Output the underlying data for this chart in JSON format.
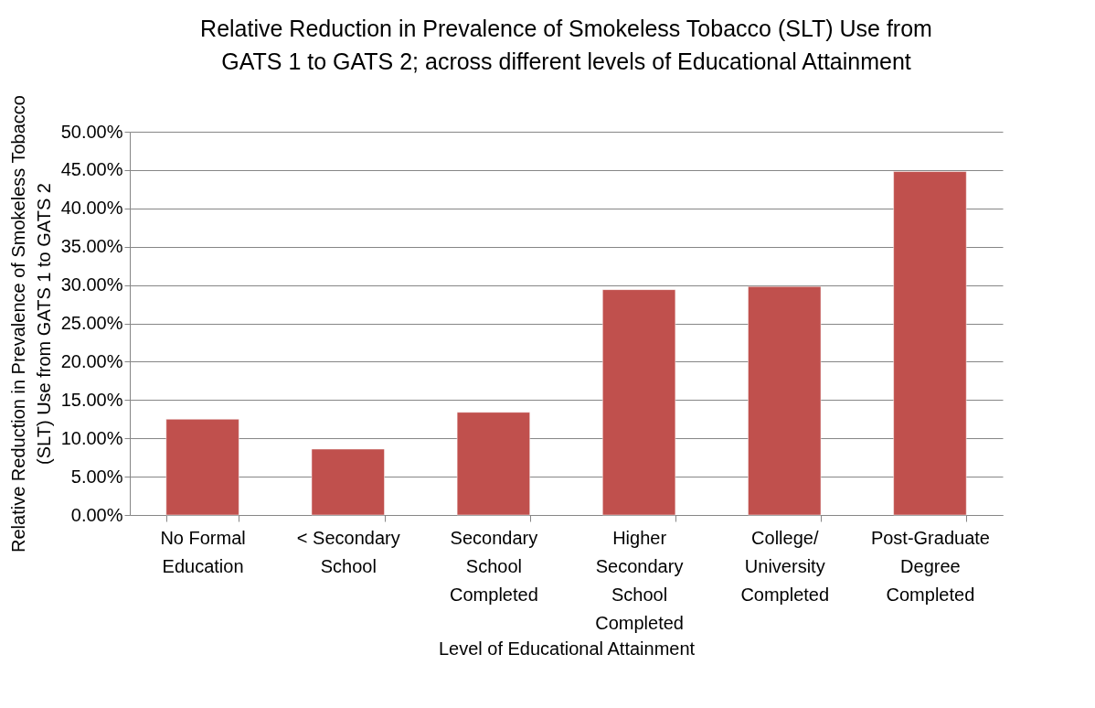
{
  "chart_data": {
    "type": "bar",
    "title": "Relative Reduction in Prevalence of Smokeless Tobacco (SLT) Use from GATS 1 to GATS 2; across different levels of Educational Attainment",
    "xlabel": "Level of Educational Attainment",
    "ylabel": "Relative Reduction in Prevalence of Smokeless Tobacco (SLT) Use from GATS 1 to GATS 2",
    "categories": [
      "No Formal Education",
      "< Secondary School",
      "Secondary School Completed",
      "Higher Secondary School Completed",
      "College/ University Completed",
      "Post-Graduate Degree Completed"
    ],
    "values": [
      12.5,
      8.6,
      13.4,
      29.4,
      29.8,
      44.8
    ],
    "color": "#c0504d",
    "ylim": [
      0,
      50
    ],
    "yticks": [
      {
        "value": 0,
        "label": "0.00%"
      },
      {
        "value": 5,
        "label": "5.00%"
      },
      {
        "value": 10,
        "label": "10.00%"
      },
      {
        "value": 15,
        "label": "15.00%"
      },
      {
        "value": 20,
        "label": "20.00%"
      },
      {
        "value": 25,
        "label": "25.00%"
      },
      {
        "value": 30,
        "label": "30.00%"
      },
      {
        "value": 35,
        "label": "35.00%"
      },
      {
        "value": 40,
        "label": "40.00%"
      },
      {
        "value": 45,
        "label": "45.00%"
      },
      {
        "value": 50,
        "label": "50.00%"
      }
    ],
    "grid": "y"
  }
}
